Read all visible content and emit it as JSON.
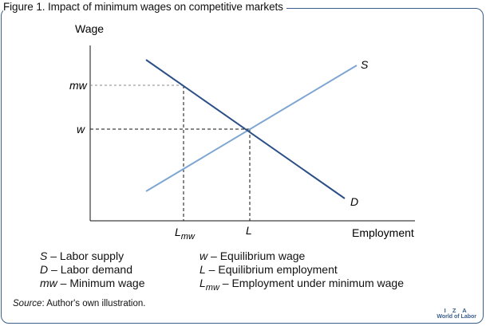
{
  "figure": {
    "title": "Figure 1. Impact of minimum wages on competitive markets"
  },
  "diagram": {
    "y_axis_label": "Wage",
    "x_axis_label": "Employment",
    "y_tick_mw": "mw",
    "y_tick_w": "w",
    "x_tick_lmw_main": "L",
    "x_tick_lmw_sub": "mw",
    "x_tick_l": "L",
    "supply_label": "S",
    "demand_label": "D",
    "colors": {
      "demand": "#2b4f86",
      "supply": "#7ea6d2",
      "frame": "#3b5f8a"
    }
  },
  "legend": {
    "col1": [
      {
        "sym": "S",
        "text": " – Labor supply"
      },
      {
        "sym": "D",
        "text": " – Labor demand"
      },
      {
        "sym": "mw",
        "text": " – Minimum wage"
      }
    ],
    "col2": [
      {
        "sym": "w",
        "text": " – Equilibrium wage"
      },
      {
        "sym": "L",
        "text": " – Equilibrium employment"
      },
      {
        "sym": "L",
        "sub": "mw",
        "text": " – Employment under minimum wage"
      }
    ]
  },
  "source": {
    "label": "Source",
    "text": ": Author's own illustration."
  },
  "brand": {
    "line1": "I Z A",
    "line2": "World of Labor"
  }
}
